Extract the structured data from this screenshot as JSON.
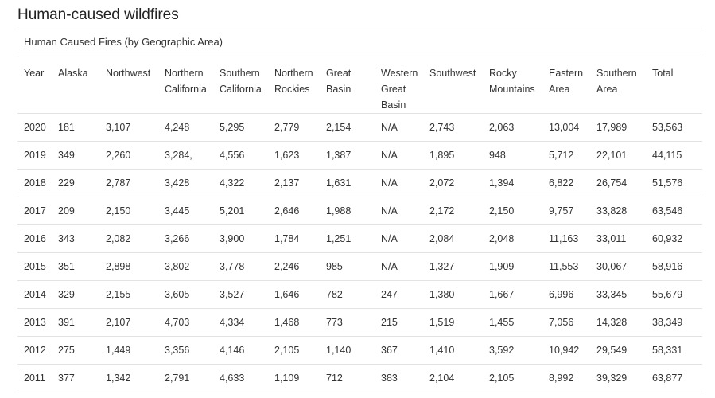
{
  "page": {
    "title": "Human-caused wildfires"
  },
  "table": {
    "caption": "Human Caused Fires (by Geographic Area)",
    "columns": [
      "Year",
      "Alaska",
      "Northwest",
      "Northern California",
      "Southern California",
      "Northern Rockies",
      "Great Basin",
      "Western Great Basin",
      "Southwest",
      "Rocky Mountains",
      "Eastern Area",
      "Southern Area",
      "Total"
    ],
    "rows": [
      [
        "2020",
        "181",
        "3,107",
        "4,248",
        "5,295",
        "2,779",
        "2,154",
        "N/A",
        "2,743",
        "2,063",
        "13,004",
        "17,989",
        "53,563"
      ],
      [
        "2019",
        "349",
        "2,260",
        "3,284,",
        "4,556",
        "1,623",
        "1,387",
        "N/A",
        "1,895",
        "948",
        "5,712",
        "22,101",
        "44,115"
      ],
      [
        "2018",
        "229",
        "2,787",
        "3,428",
        "4,322",
        "2,137",
        "1,631",
        "N/A",
        "2,072",
        "1,394",
        "6,822",
        "26,754",
        "51,576"
      ],
      [
        "2017",
        "209",
        "2,150",
        "3,445",
        "5,201",
        "2,646",
        "1,988",
        "N/A",
        "2,172",
        "2,150",
        "9,757",
        "33,828",
        "63,546"
      ],
      [
        "2016",
        "343",
        "2,082",
        "3,266",
        "3,900",
        "1,784",
        "1,251",
        "N/A",
        "2,084",
        "2,048",
        "11,163",
        "33,011",
        "60,932"
      ],
      [
        "2015",
        "351",
        "2,898",
        "3,802",
        "3,778",
        "2,246",
        "985",
        "N/A",
        "1,327",
        "1,909",
        "11,553",
        "30,067",
        "58,916"
      ],
      [
        "2014",
        "329",
        "2,155",
        "3,605",
        "3,527",
        "1,646",
        "782",
        "247",
        "1,380",
        "1,667",
        "6,996",
        "33,345",
        "55,679"
      ],
      [
        "2013",
        "391",
        "2,107",
        "4,703",
        "4,334",
        "1,468",
        "773",
        "215",
        "1,519",
        "1,455",
        "7,056",
        "14,328",
        "38,349"
      ],
      [
        "2012",
        "275",
        "1,449",
        "3,356",
        "4,146",
        "2,105",
        "1,140",
        "367",
        "1,410",
        "3,592",
        "10,942",
        "29,549",
        "58,331"
      ],
      [
        "2011",
        "377",
        "1,342",
        "2,791",
        "4,633",
        "1,109",
        "712",
        "383",
        "2,104",
        "2,105",
        "8,992",
        "39,329",
        "63,877"
      ]
    ]
  }
}
